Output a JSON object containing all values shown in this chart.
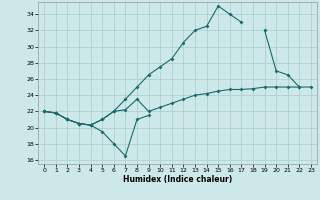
{
  "xlabel": "Humidex (Indice chaleur)",
  "bg_color": "#cce8e8",
  "grid_color": "#aacccc",
  "line_color": "#1a6b6b",
  "xlim": [
    -0.5,
    23.5
  ],
  "ylim": [
    15.5,
    35.5
  ],
  "xticks": [
    0,
    1,
    2,
    3,
    4,
    5,
    6,
    7,
    8,
    9,
    10,
    11,
    12,
    13,
    14,
    15,
    16,
    17,
    18,
    19,
    20,
    21,
    22,
    23
  ],
  "yticks": [
    16,
    18,
    20,
    22,
    24,
    26,
    28,
    30,
    32,
    34
  ],
  "series1_x": [
    0,
    1,
    2,
    3,
    4,
    5,
    6,
    7,
    8,
    9
  ],
  "series1_y": [
    22,
    21.8,
    21.0,
    20.5,
    20.3,
    19.5,
    18.0,
    16.5,
    21.0,
    21.5
  ],
  "series2_x": [
    0,
    1,
    2,
    3,
    4,
    5,
    6,
    7,
    8,
    9,
    10,
    11,
    12,
    13,
    14,
    15,
    16,
    17,
    18,
    19,
    20,
    21,
    22,
    23
  ],
  "series2_y": [
    22,
    21.8,
    21.0,
    20.5,
    20.3,
    21.0,
    22.0,
    23.5,
    25.0,
    26.5,
    27.5,
    28.5,
    30.5,
    32.0,
    32.5,
    35.0,
    34.0,
    33.0,
    null,
    32.0,
    27.0,
    26.5,
    25.0,
    null
  ],
  "series3_x": [
    0,
    1,
    2,
    3,
    4,
    5,
    6,
    7,
    8,
    9,
    10,
    11,
    12,
    13,
    14,
    15,
    16,
    17,
    18,
    19,
    20,
    21,
    22,
    23
  ],
  "series3_y": [
    22,
    21.8,
    21.0,
    20.5,
    20.3,
    21.0,
    22.0,
    22.2,
    23.5,
    22.0,
    22.5,
    23.0,
    23.5,
    24.0,
    24.2,
    24.5,
    24.7,
    24.7,
    24.8,
    25.0,
    25.0,
    25.0,
    25.0,
    25.0
  ]
}
